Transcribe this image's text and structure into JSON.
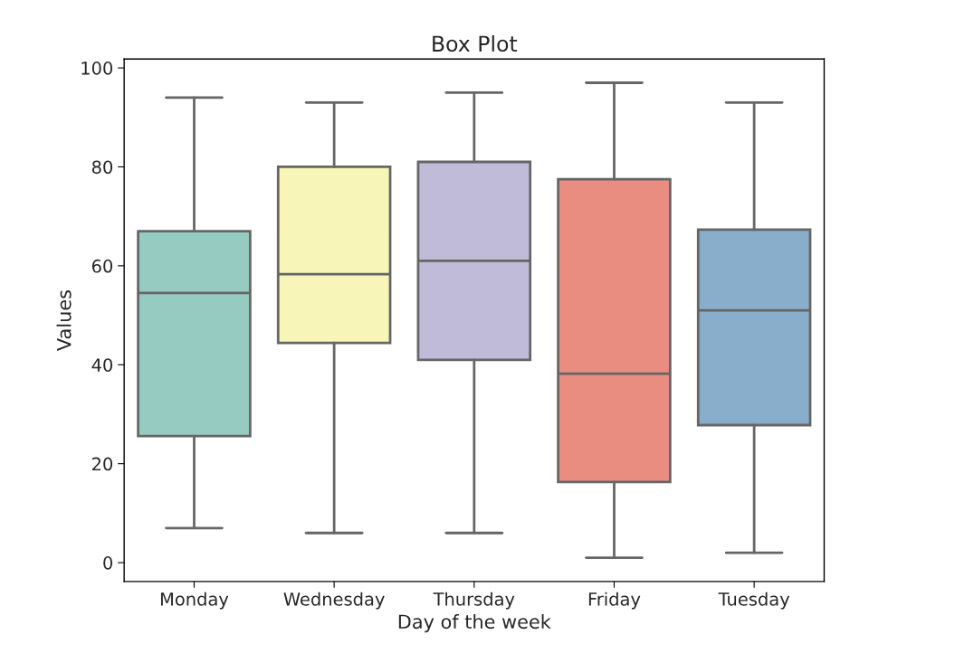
{
  "chart_data": {
    "type": "box",
    "title": "Box Plot",
    "xlabel": "Day of the week",
    "ylabel": "Values",
    "categories": [
      "Monday",
      "Wednesday",
      "Thursday",
      "Friday",
      "Tuesday"
    ],
    "colors": [
      "#96cbc1",
      "#f7f6b8",
      "#c0bbd8",
      "#e98d80",
      "#88aecb"
    ],
    "boxes": [
      {
        "low": 7,
        "q1": 25.6,
        "median": 54.5,
        "q3": 67,
        "high": 94
      },
      {
        "low": 6,
        "q1": 44.4,
        "median": 58.3,
        "q3": 80,
        "high": 93
      },
      {
        "low": 6,
        "q1": 41,
        "median": 61,
        "q3": 81,
        "high": 95
      },
      {
        "low": 1,
        "q1": 16.3,
        "median": 38.2,
        "q3": 77.5,
        "high": 97
      },
      {
        "low": 2,
        "q1": 27.8,
        "median": 51,
        "q3": 67.3,
        "high": 93
      }
    ],
    "ylim": [
      -3.8,
      101.8
    ],
    "yticks": [
      0,
      20,
      40,
      60,
      80,
      100
    ],
    "grid": false
  }
}
